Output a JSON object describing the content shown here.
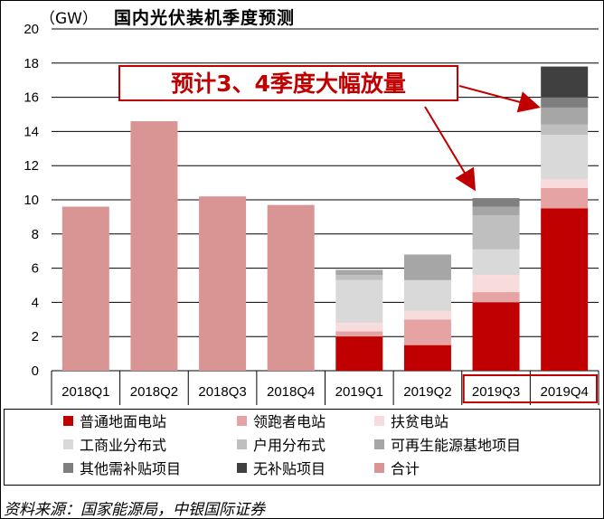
{
  "chart_data": {
    "type": "bar",
    "title": "国内光伏装机季度预测",
    "unit_label": "（GW）",
    "ylim": [
      0,
      20
    ],
    "yticks": [
      "0",
      "2",
      "4",
      "6",
      "8",
      "10",
      "12",
      "14",
      "16",
      "18",
      "20"
    ],
    "grid": true,
    "categories": [
      "2018Q1",
      "2018Q2",
      "2018Q3",
      "2018Q4",
      "2019Q1",
      "2019Q2",
      "2019Q3",
      "2019Q4"
    ],
    "stacked": true,
    "series": [
      {
        "name": "普通地面电站",
        "color": "#c00000",
        "values": [
          0,
          0,
          0,
          0,
          2.0,
          1.5,
          4.0,
          9.5
        ]
      },
      {
        "name": "领跑者电站",
        "color": "#e6a3a3",
        "values": [
          0,
          0,
          0,
          0,
          0.3,
          1.5,
          0.6,
          1.2
        ]
      },
      {
        "name": "扶贫电站",
        "color": "#f8dcdc",
        "values": [
          0,
          0,
          0,
          0,
          0.5,
          0.5,
          1.0,
          0.5
        ]
      },
      {
        "name": "工商业分布式",
        "color": "#d9d9d9",
        "values": [
          0,
          0,
          0,
          0,
          2.5,
          1.8,
          1.5,
          2.6
        ]
      },
      {
        "name": "户用分布式",
        "color": "#bfbfbf",
        "values": [
          0,
          0,
          0,
          0,
          0.3,
          0.0,
          2.0,
          0.6
        ]
      },
      {
        "name": "可再生能源基地项目",
        "color": "#a6a6a6",
        "values": [
          0,
          0,
          0,
          0,
          0.3,
          1.5,
          0.5,
          1.0
        ]
      },
      {
        "name": "其他需补贴项目",
        "color": "#7f7f7f",
        "values": [
          0,
          0,
          0,
          0,
          0.0,
          0.0,
          0.5,
          0.6
        ]
      },
      {
        "name": "无补贴项目",
        "color": "#404040",
        "values": [
          0,
          0,
          0,
          0,
          0.0,
          0.0,
          0.0,
          1.8
        ]
      },
      {
        "name": "合计",
        "color": "#d99594",
        "values": [
          9.6,
          14.6,
          10.2,
          9.7,
          0,
          0,
          0,
          0
        ]
      }
    ],
    "highlighted_categories": [
      "2019Q3",
      "2019Q4"
    ],
    "annotation": "预计3、4季度大幅放量",
    "highlight_color": "#c00000"
  },
  "source_note": "资料来源：国家能源局，中银国际证券"
}
